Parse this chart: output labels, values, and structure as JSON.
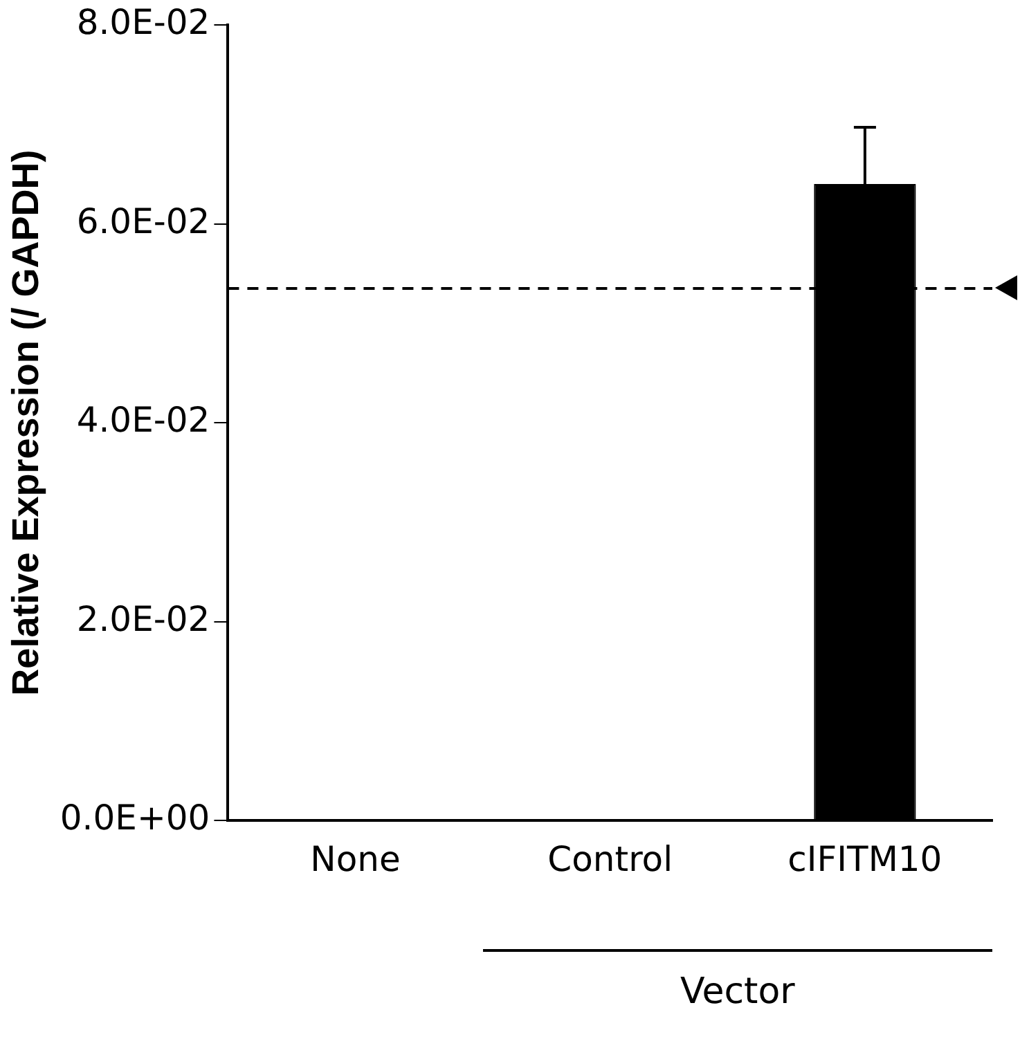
{
  "chart_data": {
    "type": "bar",
    "ylabel": "Relative Expression (/ GAPDH)",
    "categories": [
      "None",
      "Control",
      "cIFITM10"
    ],
    "values": [
      0,
      0,
      0.064
    ],
    "color": "#000000",
    "errors": [
      null,
      null,
      [
        0.064,
        0.0697
      ]
    ],
    "ylim": [
      0,
      0.08
    ],
    "yticks": [
      {
        "value": 0,
        "label": "0.0E+00"
      },
      {
        "value": 0.02,
        "label": "2.0E-02"
      },
      {
        "value": 0.04,
        "label": "4.0E-02"
      },
      {
        "value": 0.06,
        "label": "6.0E-02"
      },
      {
        "value": 0.08,
        "label": "8.0E-02"
      }
    ],
    "ref_lines": [
      {
        "axis": "y",
        "value": 0.0535,
        "line_style": "dashed",
        "color": "#000000"
      }
    ],
    "annotations": [
      "Vector"
    ],
    "grid": false,
    "legend": false
  }
}
